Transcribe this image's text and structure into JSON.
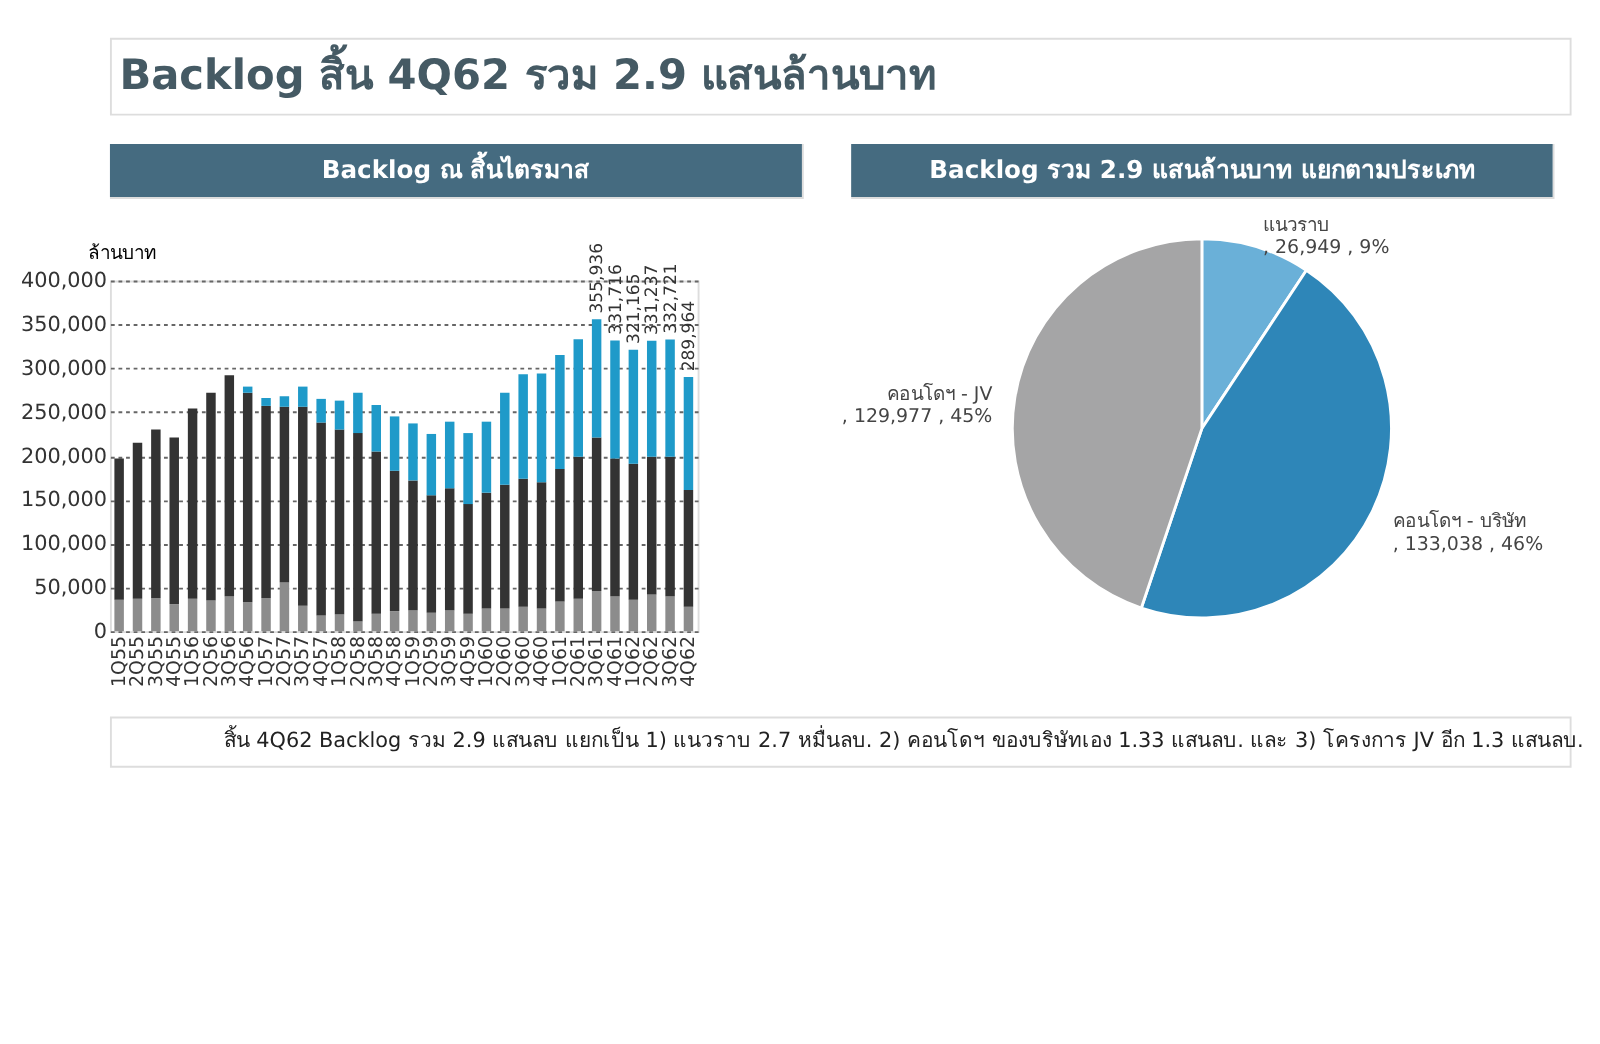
{
  "chart_data": [
    {
      "type": "bar",
      "title": "Backlog ณ สิ้นไตรมาส",
      "stacked": true,
      "ylabel": "ล้านบาท",
      "annotations": [
        "Backlog สิ้น 4Q62 รวม 2.9 แสนล้านบาท",
        "สิ้น 4Q62 Backlog รวม 2.9 แสนลบ แยกเป็น 1) แนวราบ 2.7 หมื่นลบ. 2) คอนโดฯ ของบริษัทเอง 1.33 แสนลบ. และ 3) โครงการ JV อีก 1.3 แสนลบ."
      ],
      "categories": [
        "1Q55",
        "2Q55",
        "3Q55",
        "4Q55",
        "1Q56",
        "2Q56",
        "3Q56",
        "4Q56",
        "1Q57",
        "2Q57",
        "3Q57",
        "4Q57",
        "1Q58",
        "2Q58",
        "3Q58",
        "4Q58",
        "1Q59",
        "2Q59",
        "3Q59",
        "4Q59",
        "1Q60",
        "2Q60",
        "3Q60",
        "4Q60",
        "1Q61",
        "2Q61",
        "3Q61",
        "4Q61",
        "1Q62",
        "2Q62",
        "3Q62",
        "4Q62"
      ],
      "series": [
        {
          "color": "#8c8c8c",
          "values": [
            36000,
            37000,
            38000,
            31000,
            37000,
            35000,
            40000,
            33000,
            38000,
            56000,
            29000,
            18000,
            19000,
            11000,
            20000,
            23000,
            24000,
            21000,
            24000,
            20000,
            26000,
            26000,
            28000,
            26000,
            34000,
            37000,
            46000,
            40000,
            36000,
            42000,
            40000,
            28000
          ]
        },
        {
          "color": "#333333",
          "values": [
            161000,
            178000,
            192000,
            190000,
            217000,
            237000,
            252000,
            239000,
            219000,
            200000,
            227000,
            220000,
            211000,
            215000,
            185000,
            160000,
            148000,
            134000,
            139000,
            125000,
            132000,
            141000,
            146000,
            144000,
            151000,
            162000,
            175000,
            157000,
            155000,
            157000,
            159000,
            133000
          ]
        },
        {
          "color": "#1f9ac9",
          "values": [
            null,
            null,
            null,
            null,
            null,
            null,
            null,
            7000,
            9000,
            12000,
            23000,
            27000,
            33000,
            46000,
            53000,
            62000,
            65000,
            70000,
            76000,
            81000,
            81000,
            105000,
            119000,
            124000,
            130000,
            134000,
            134936,
            134716,
            130165,
            132237,
            133721,
            128964
          ]
        }
      ],
      "totals": [
        null,
        null,
        null,
        null,
        null,
        null,
        null,
        null,
        null,
        null,
        null,
        null,
        null,
        null,
        null,
        null,
        null,
        null,
        null,
        null,
        null,
        null,
        null,
        null,
        null,
        null,
        "355,936",
        "331,716",
        "321,165",
        "331,237",
        "332,721",
        "289,964"
      ],
      "ylim": [
        0,
        400000
      ],
      "yticks": [
        0,
        {
          "value": 50000,
          "label": "50,000"
        },
        {
          "value": 100000,
          "label": "100,000"
        },
        {
          "value": 150000,
          "label": "150,000"
        },
        {
          "value": 200000,
          "label": "200,000"
        },
        {
          "value": 250000,
          "label": "250,000"
        },
        {
          "value": 300000,
          "label": "300,000"
        },
        {
          "value": 350000,
          "label": "350,000"
        },
        {
          "value": 400000,
          "label": "400,000"
        }
      ],
      "grid": "y"
    },
    {
      "type": "pie",
      "title": "Backlog รวม 2.9 แสนล้านบาท แยกตามประเภท",
      "categories": [
        "แนวราบ",
        "คอนโดฯ - บริษัท",
        "คอนโดฯ - JV"
      ],
      "values": [
        26949,
        133038,
        129977
      ],
      "colors": [
        "#6ab0d8",
        "#2e86b8",
        "#a5a5a6"
      ],
      "value_labels": [
        ", 26,949 , 9%",
        ", 133,038 , 46%",
        ", 129,977 , 45%"
      ]
    }
  ]
}
